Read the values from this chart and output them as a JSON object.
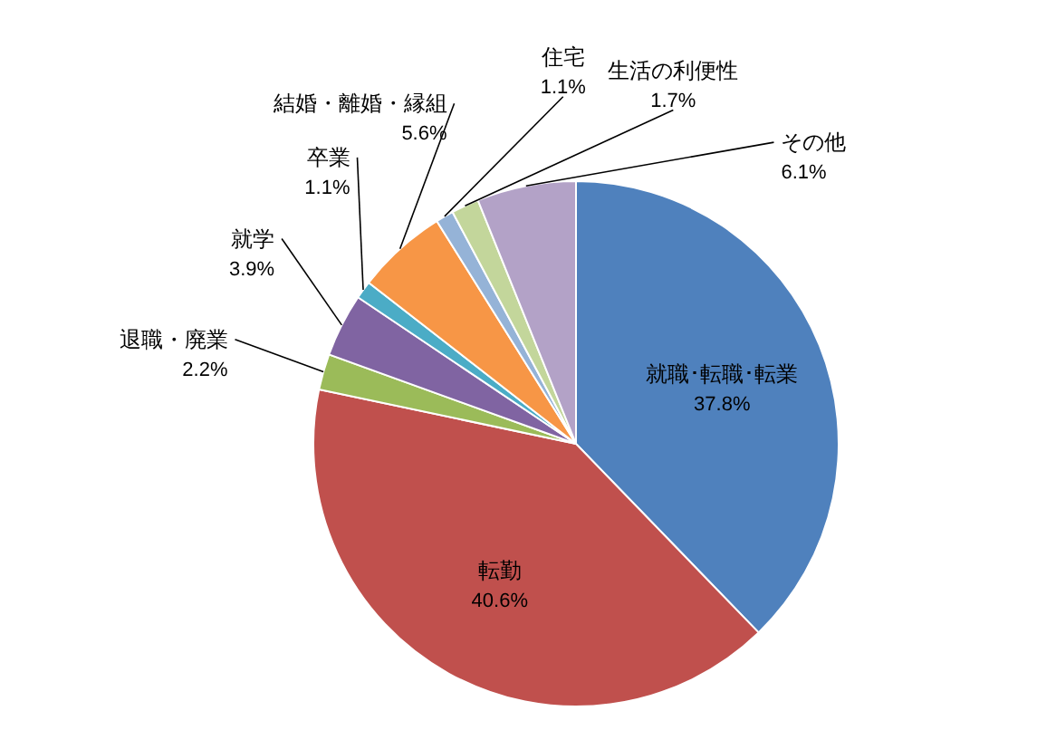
{
  "chart_data": {
    "type": "pie",
    "categories": [
      "就職･転職･転業",
      "転勤",
      "退職・廃業",
      "就学",
      "卒業",
      "結婚・離婚・縁組",
      "住宅",
      "生活の利便性",
      "その他"
    ],
    "values": [
      37.8,
      40.6,
      2.2,
      3.9,
      1.1,
      5.6,
      1.1,
      1.7,
      6.1
    ],
    "colors": [
      "#4f81bd",
      "#c0504d",
      "#9bbb59",
      "#8064a2",
      "#4bacc6",
      "#f79646",
      "#95b3d7",
      "#c3d69b",
      "#b3a2c7"
    ],
    "value_labels": [
      "37.8%",
      "40.6%",
      "2.2%",
      "3.9%",
      "1.1%",
      "5.6%",
      "1.1%",
      "1.7%",
      "6.1%"
    ]
  }
}
